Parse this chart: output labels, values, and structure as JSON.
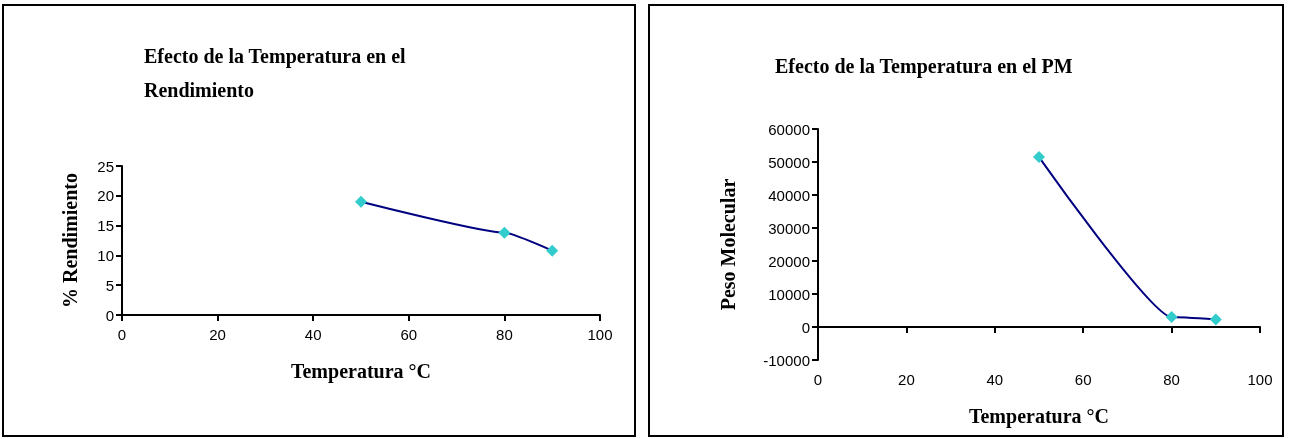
{
  "chart_data": [
    {
      "type": "line",
      "title": "Efecto de la Temperatura en el Rendimiento",
      "xlabel": "Temperatura °C",
      "ylabel": "% Rendimiento",
      "x": [
        50,
        80,
        90
      ],
      "series": [
        {
          "values": [
            19,
            13.8,
            10.8
          ],
          "color": "#000080",
          "colors": [
            "#33cccc",
            "#33cccc",
            "#33cccc"
          ]
        }
      ],
      "xlim": [
        0,
        100
      ],
      "xticks": [
        0,
        20,
        40,
        60,
        80,
        100
      ],
      "ylim": [
        0,
        25
      ],
      "yticks": [
        0,
        5,
        10,
        15,
        20,
        25
      ],
      "marker": "diamond",
      "line_style": "solid"
    },
    {
      "type": "line",
      "title": "Efecto de la Temperatura en el PM",
      "xlabel": "Temperatura °C",
      "ylabel": "Peso Molecular",
      "x": [
        50,
        80,
        90
      ],
      "series": [
        {
          "values": [
            51500,
            3000,
            2300
          ],
          "color": "#000080",
          "colors": [
            "#33cccc",
            "#33cccc",
            "#33cccc"
          ]
        }
      ],
      "xlim": [
        0,
        100
      ],
      "xticks": [
        0,
        20,
        40,
        60,
        80,
        100
      ],
      "ylim": [
        -10000,
        60000
      ],
      "yticks": [
        -10000,
        0,
        10000,
        20000,
        30000,
        40000,
        50000,
        60000
      ],
      "marker": "diamond",
      "line_style": "solid"
    }
  ]
}
